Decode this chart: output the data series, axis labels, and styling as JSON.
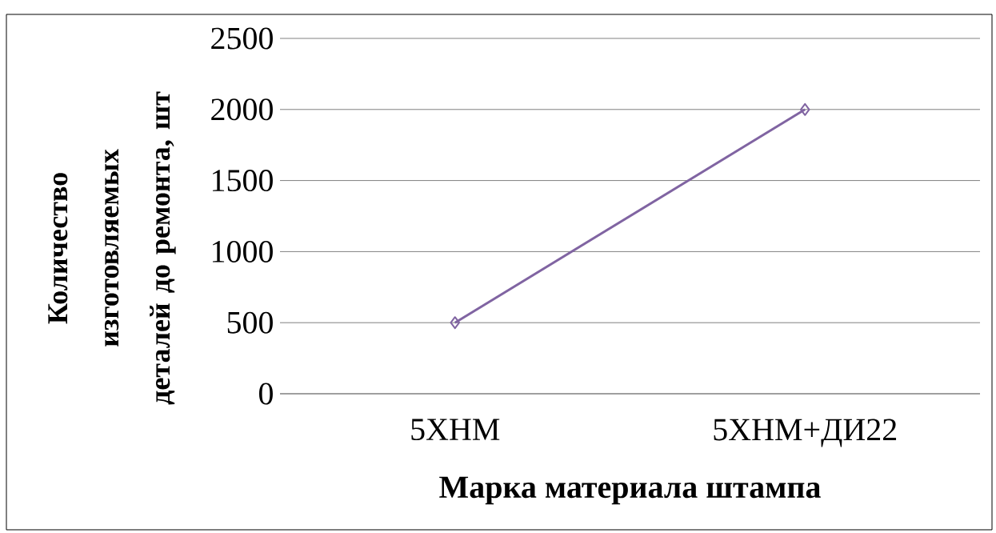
{
  "chart_data": {
    "type": "line",
    "xlabel": "Марка материала штампа",
    "ylabel": "Количество изготовляемых деталей до ремонта, шт",
    "categories": [
      "5ХНМ",
      "5ХНМ+ДИ22"
    ],
    "series": [
      {
        "color": "#8064a2",
        "values": [
          500,
          2000
        ]
      }
    ],
    "ylim": [
      0,
      2500
    ],
    "yticks": [
      0,
      500,
      1000,
      1500,
      2000,
      2500
    ],
    "grid": "y",
    "marker": "diamond",
    "line_style": "solid"
  }
}
